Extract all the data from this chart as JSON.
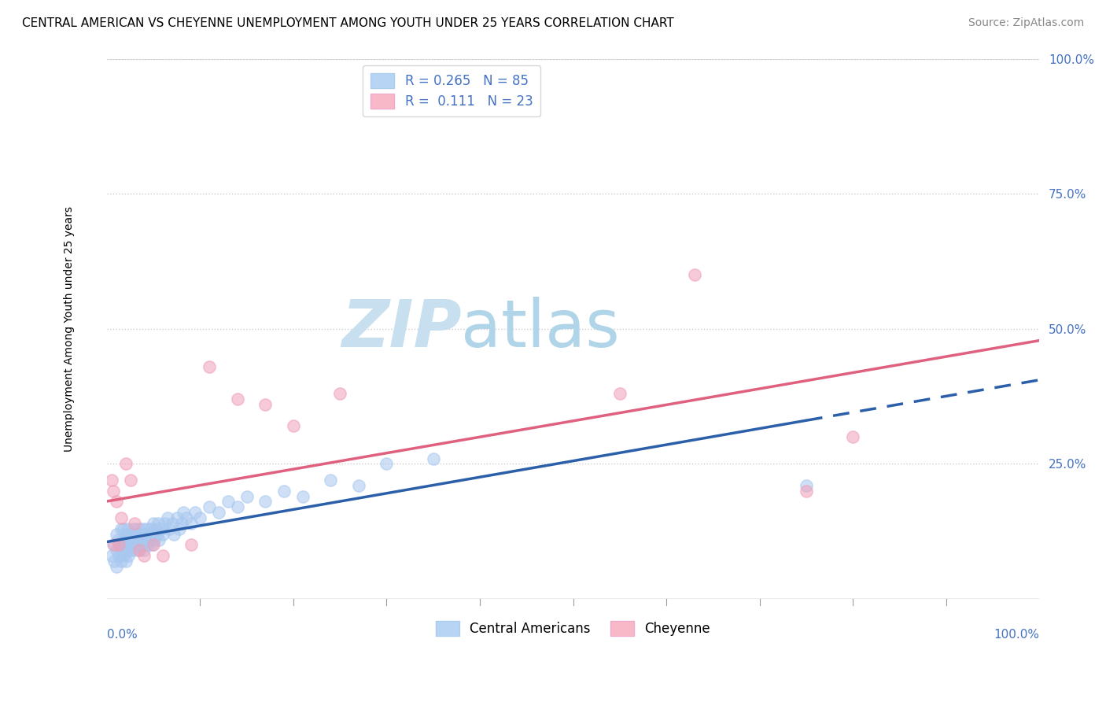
{
  "title": "CENTRAL AMERICAN VS CHEYENNE UNEMPLOYMENT AMONG YOUTH UNDER 25 YEARS CORRELATION CHART",
  "source": "Source: ZipAtlas.com",
  "ylabel": "Unemployment Among Youth under 25 years",
  "xlabel": "",
  "watermark_zip": "ZIP",
  "watermark_atlas": "atlas",
  "xlim": [
    0.0,
    1.0
  ],
  "ylim": [
    0.0,
    1.0
  ],
  "ytick_labels": [
    "",
    "25.0%",
    "50.0%",
    "75.0%",
    "100.0%"
  ],
  "ytick_values": [
    0.0,
    0.25,
    0.5,
    0.75,
    1.0
  ],
  "xtick_labels": [
    "0.0%",
    "100.0%"
  ],
  "series": [
    {
      "name": "Central Americans",
      "R": "0.265",
      "N": "85",
      "marker_color": "#a8c8f0",
      "trend_color": "#2b5faa",
      "legend_patch_color": "#b8d4f4"
    },
    {
      "name": "Cheyenne",
      "R": "0.111",
      "N": "23",
      "marker_color": "#f0a0b8",
      "trend_color": "#e06080",
      "legend_patch_color": "#f8b8c8"
    }
  ],
  "blue_x": [
    0.005,
    0.007,
    0.008,
    0.01,
    0.01,
    0.01,
    0.012,
    0.013,
    0.015,
    0.015,
    0.015,
    0.016,
    0.017,
    0.018,
    0.018,
    0.019,
    0.02,
    0.02,
    0.02,
    0.021,
    0.022,
    0.022,
    0.023,
    0.024,
    0.025,
    0.025,
    0.026,
    0.027,
    0.028,
    0.029,
    0.03,
    0.031,
    0.032,
    0.033,
    0.034,
    0.035,
    0.036,
    0.037,
    0.038,
    0.039,
    0.04,
    0.04,
    0.041,
    0.042,
    0.043,
    0.044,
    0.045,
    0.046,
    0.047,
    0.048,
    0.05,
    0.05,
    0.051,
    0.052,
    0.054,
    0.055,
    0.056,
    0.058,
    0.06,
    0.062,
    0.065,
    0.067,
    0.07,
    0.072,
    0.075,
    0.078,
    0.08,
    0.082,
    0.085,
    0.09,
    0.095,
    0.1,
    0.11,
    0.12,
    0.13,
    0.14,
    0.15,
    0.17,
    0.19,
    0.21,
    0.24,
    0.27,
    0.3,
    0.35,
    0.75
  ],
  "blue_y": [
    0.08,
    0.1,
    0.07,
    0.12,
    0.09,
    0.06,
    0.11,
    0.08,
    0.1,
    0.13,
    0.07,
    0.09,
    0.11,
    0.08,
    0.13,
    0.1,
    0.09,
    0.12,
    0.07,
    0.11,
    0.1,
    0.13,
    0.08,
    0.11,
    0.09,
    0.12,
    0.1,
    0.11,
    0.09,
    0.13,
    0.1,
    0.12,
    0.11,
    0.09,
    0.13,
    0.11,
    0.1,
    0.12,
    0.13,
    0.1,
    0.11,
    0.09,
    0.12,
    0.13,
    0.11,
    0.1,
    0.12,
    0.11,
    0.13,
    0.1,
    0.12,
    0.14,
    0.11,
    0.13,
    0.12,
    0.14,
    0.11,
    0.13,
    0.12,
    0.14,
    0.15,
    0.13,
    0.14,
    0.12,
    0.15,
    0.13,
    0.14,
    0.16,
    0.15,
    0.14,
    0.16,
    0.15,
    0.17,
    0.16,
    0.18,
    0.17,
    0.19,
    0.18,
    0.2,
    0.19,
    0.22,
    0.21,
    0.25,
    0.26,
    0.21
  ],
  "pink_x": [
    0.005,
    0.007,
    0.008,
    0.01,
    0.013,
    0.015,
    0.02,
    0.025,
    0.03,
    0.035,
    0.04,
    0.05,
    0.06,
    0.09,
    0.11,
    0.14,
    0.17,
    0.2,
    0.25,
    0.55,
    0.63,
    0.75,
    0.8
  ],
  "pink_y": [
    0.22,
    0.2,
    0.1,
    0.18,
    0.1,
    0.15,
    0.25,
    0.22,
    0.14,
    0.09,
    0.08,
    0.1,
    0.08,
    0.1,
    0.43,
    0.37,
    0.36,
    0.32,
    0.38,
    0.38,
    0.6,
    0.2,
    0.3
  ],
  "blue_trend_solid_end": 0.75,
  "pink_trend_solid_end": 1.0,
  "title_fontsize": 11,
  "source_fontsize": 10,
  "label_fontsize": 10,
  "tick_fontsize": 11,
  "legend_fontsize": 12,
  "watermark_zip_fontsize": 60,
  "watermark_atlas_fontsize": 60,
  "watermark_color_zip": "#c8dff0",
  "watermark_color_atlas": "#b0d4e8",
  "background_color": "#ffffff",
  "grid_color": "#cccccc",
  "right_axis_color": "#4472c4"
}
